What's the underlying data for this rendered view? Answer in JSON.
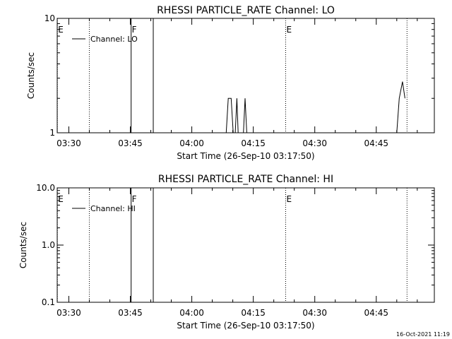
{
  "footer_timestamp": "16-Oct-2021 11:19",
  "chart_data": [
    {
      "type": "line",
      "title": "RHESSI PARTICLE_RATE Channel: LO",
      "xlabel": "Start Time (26-Sep-10 03:17:50)",
      "ylabel": "Counts/sec",
      "yscale": "log",
      "ylim": [
        1,
        10
      ],
      "xlim_minutes": [
        -17.8333,
        74.1667
      ],
      "xtick_labels": [
        "03:30",
        "03:45",
        "04:00",
        "04:15",
        "04:30",
        "04:45"
      ],
      "xtick_minutes": [
        -15,
        0,
        15,
        30,
        45,
        60
      ],
      "ytick_labels": [
        "1",
        "10"
      ],
      "ytick_values": [
        1,
        10
      ],
      "legend": {
        "label": "Channel: LO",
        "placement": "top-left"
      },
      "grid": false,
      "markers": [
        {
          "label": "E",
          "minutes": -17.8,
          "style": "dotted"
        },
        {
          "label": "",
          "minutes": -10.0,
          "style": "dotted"
        },
        {
          "label": "F",
          "minutes": 0.2,
          "style": "solid"
        },
        {
          "label": "",
          "minutes": 5.6,
          "style": "solid"
        },
        {
          "label": "E",
          "minutes": 37.9,
          "style": "dotted"
        },
        {
          "label": "",
          "minutes": 67.5,
          "style": "dotted"
        }
      ],
      "series": [
        {
          "segments": [
            [
              [
                23.4,
                1
              ],
              [
                23.9,
                2
              ],
              [
                24.6,
                2
              ],
              [
                25.1,
                1
              ]
            ],
            [
              [
                25.6,
                1
              ],
              [
                26.0,
                2
              ],
              [
                26.3,
                1
              ]
            ],
            [
              [
                27.6,
                1
              ],
              [
                28.0,
                2
              ],
              [
                28.4,
                1
              ]
            ],
            [
              [
                65.0,
                1
              ],
              [
                65.6,
                2
              ],
              [
                66.4,
                2.8
              ],
              [
                67.0,
                2
              ]
            ]
          ]
        }
      ]
    },
    {
      "type": "line",
      "title": "RHESSI PARTICLE_RATE Channel: HI",
      "xlabel": "Start Time (26-Sep-10 03:17:50)",
      "ylabel": "Counts/sec",
      "yscale": "log",
      "ylim": [
        0.1,
        10
      ],
      "xlim_minutes": [
        -17.8333,
        74.1667
      ],
      "xtick_labels": [
        "03:30",
        "03:45",
        "04:00",
        "04:15",
        "04:30",
        "04:45"
      ],
      "xtick_minutes": [
        -15,
        0,
        15,
        30,
        45,
        60
      ],
      "ytick_labels": [
        "0.1",
        "1.0",
        "10.0"
      ],
      "ytick_values": [
        0.1,
        1,
        10
      ],
      "legend": {
        "label": "Channel: HI",
        "placement": "top-left"
      },
      "grid": false,
      "markers": [
        {
          "label": "E",
          "minutes": -17.8,
          "style": "dotted"
        },
        {
          "label": "",
          "minutes": -10.0,
          "style": "dotted"
        },
        {
          "label": "F",
          "minutes": 0.2,
          "style": "solid"
        },
        {
          "label": "",
          "minutes": 5.6,
          "style": "solid"
        },
        {
          "label": "E",
          "minutes": 37.9,
          "style": "dotted"
        },
        {
          "label": "",
          "minutes": 67.5,
          "style": "dotted"
        }
      ],
      "series": [
        {
          "segments": []
        }
      ]
    }
  ]
}
